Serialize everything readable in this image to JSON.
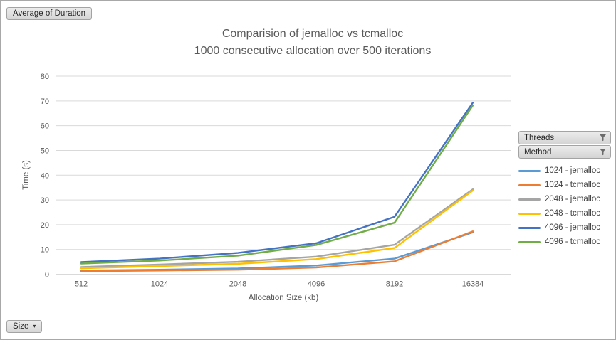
{
  "pivot_buttons": {
    "value_field": "Average of Duration",
    "axis_field": "Size",
    "legend_fields": [
      "Threads",
      "Method"
    ]
  },
  "chart_data": {
    "type": "line",
    "title_line1": "Comparision of jemalloc vs tcmalloc",
    "title_line2": "1000 consecutive allocation over 500 iterations",
    "xlabel": "Allocation Size (kb)",
    "ylabel": "Time (s)",
    "categories": [
      "512",
      "1024",
      "2048",
      "4096",
      "8192",
      "16384"
    ],
    "y_ticks": [
      0,
      10,
      20,
      30,
      40,
      50,
      60,
      70,
      80
    ],
    "ylim": [
      0,
      80
    ],
    "grid": true,
    "legend_position": "right",
    "series": [
      {
        "name": "1024 - jemalloc",
        "color": "#5B9BD5",
        "values": [
          1.5,
          1.8,
          2.3,
          3.5,
          6.3,
          16.9
        ]
      },
      {
        "name": "1024 - tcmalloc",
        "color": "#ED7D31",
        "values": [
          1.2,
          1.5,
          1.8,
          2.7,
          5.2,
          17.3
        ]
      },
      {
        "name": "2048 - jemalloc",
        "color": "#A5A5A5",
        "values": [
          2.9,
          3.9,
          5.0,
          7.1,
          11.9,
          34.3
        ]
      },
      {
        "name": "2048 - tcmalloc",
        "color": "#FFC000",
        "values": [
          2.4,
          3.3,
          4.2,
          6.1,
          10.6,
          33.8
        ]
      },
      {
        "name": "4096 - jemalloc",
        "color": "#4472C4",
        "values": [
          4.9,
          6.3,
          8.6,
          12.5,
          23.2,
          69.3
        ]
      },
      {
        "name": "4096 - tcmalloc",
        "color": "#70AD47",
        "values": [
          4.3,
          5.5,
          7.5,
          11.8,
          20.8,
          68.2
        ]
      }
    ],
    "colors": {
      "gridline": "#D9D9D9",
      "axis_text": "#595959",
      "title_text": "#595959",
      "legend_text": "#404040"
    }
  }
}
